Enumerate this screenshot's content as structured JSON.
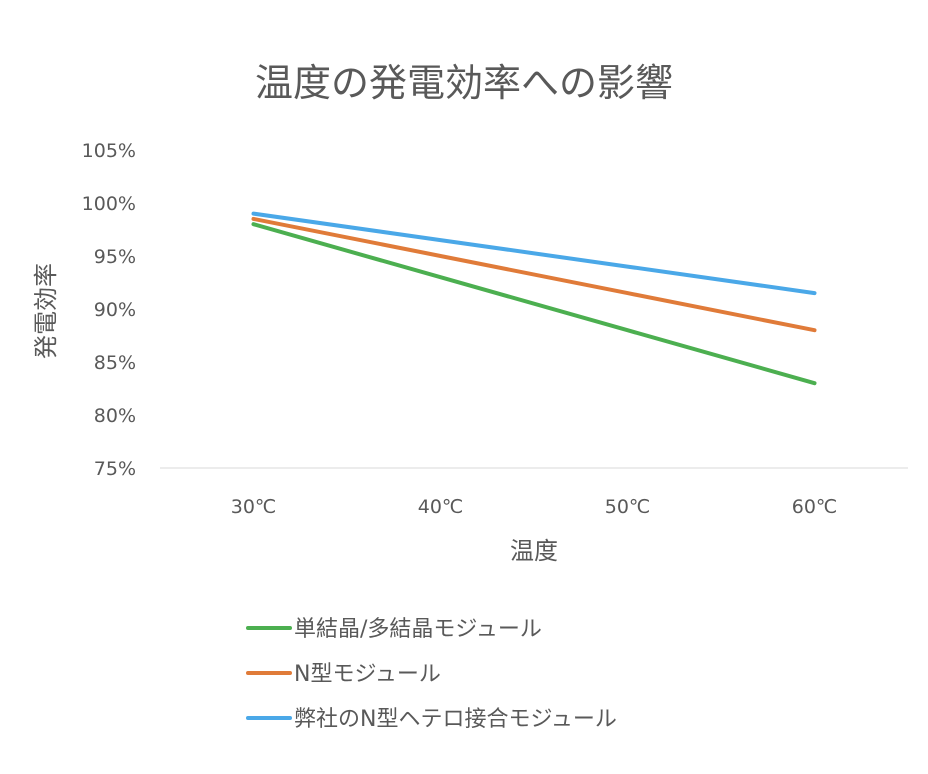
{
  "chart_data": {
    "type": "line",
    "title": "温度の発電効率への影響",
    "xlabel": "温度",
    "ylabel": "発電効率",
    "categories": [
      "30℃",
      "40℃",
      "50℃",
      "60℃"
    ],
    "yticks": [
      "75%",
      "80%",
      "85%",
      "90%",
      "95%",
      "100%",
      "105%"
    ],
    "ylim": [
      75,
      105
    ],
    "grid": false,
    "legend": "bottom",
    "series": [
      {
        "name": "単結晶/多結晶モジュール",
        "values": [
          98,
          93,
          88,
          83
        ],
        "color": "#4caf50"
      },
      {
        "name": "N型モジュール",
        "values": [
          98.5,
          95,
          91.5,
          88
        ],
        "color": "#e07b39"
      },
      {
        "name": "弊社のN型ヘテロ接合モジュール",
        "values": [
          99,
          96.5,
          94,
          91.5
        ],
        "color": "#4aa8e8"
      }
    ]
  }
}
